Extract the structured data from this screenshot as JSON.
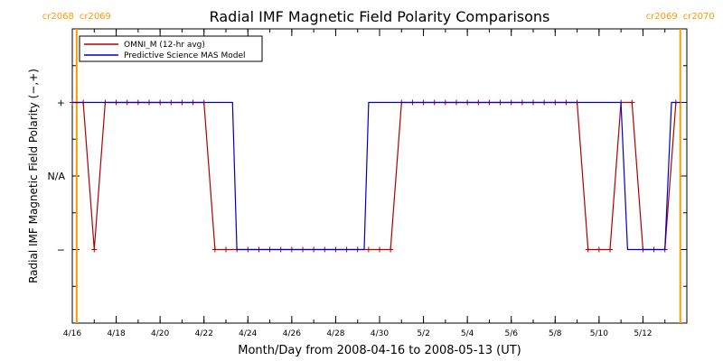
{
  "chart_data": {
    "type": "line",
    "title": "Radial IMF Magnetic Field Polarity Comparisons",
    "xlabel": "Month/Day from 2008-04-16 to 2008-05-13 (UT)",
    "ylabel": "Radial IMF Magnetic Field Polarity (−,+)",
    "xlim": [
      "2008-04-16",
      "2008-05-14"
    ],
    "x_ticks": [
      "4/16",
      "4/18",
      "4/20",
      "4/22",
      "4/24",
      "4/26",
      "4/28",
      "4/30",
      "5/2",
      "5/4",
      "5/6",
      "5/8",
      "5/10",
      "5/12"
    ],
    "y_ticks": [
      "+",
      "N/A",
      "−"
    ],
    "ylim": [
      -2,
      2
    ],
    "legend": {
      "placement": "top-left",
      "entries": [
        "OMNI_M (12-hr avg)",
        "Predictive Science MAS Model"
      ]
    },
    "carrington_markers": [
      {
        "date": "2008-04-16.2",
        "labels": [
          "cr2068",
          "cr2069"
        ],
        "color": "#ff9a00"
      },
      {
        "date": "2008-05-13.7",
        "labels": [
          "cr2069",
          "cr2070"
        ],
        "color": "#ff9a00"
      }
    ],
    "series": [
      {
        "name": "OMNI_M (12-hr avg)",
        "color": "#b00000",
        "points": [
          [
            "2008-04-16.0",
            1
          ],
          [
            "2008-04-16.5",
            1
          ],
          [
            "2008-04-17.0",
            -1
          ],
          [
            "2008-04-17.5",
            1
          ],
          [
            "2008-04-18.0",
            1
          ],
          [
            "2008-04-18.5",
            1
          ],
          [
            "2008-04-19.0",
            1
          ],
          [
            "2008-04-19.5",
            1
          ],
          [
            "2008-04-20.0",
            1
          ],
          [
            "2008-04-20.5",
            1
          ],
          [
            "2008-04-21.0",
            1
          ],
          [
            "2008-04-21.5",
            1
          ],
          [
            "2008-04-22.0",
            1
          ],
          [
            "2008-04-22.5",
            -1
          ],
          [
            "2008-04-23.0",
            -1
          ],
          [
            "2008-04-23.5",
            -1
          ],
          [
            "2008-04-24.0",
            -1
          ],
          [
            "2008-04-24.5",
            -1
          ],
          [
            "2008-04-25.0",
            -1
          ],
          [
            "2008-04-25.5",
            -1
          ],
          [
            "2008-04-26.0",
            -1
          ],
          [
            "2008-04-26.5",
            -1
          ],
          [
            "2008-04-27.0",
            -1
          ],
          [
            "2008-04-27.5",
            -1
          ],
          [
            "2008-04-28.0",
            -1
          ],
          [
            "2008-04-28.5",
            -1
          ],
          [
            "2008-04-29.0",
            -1
          ],
          [
            "2008-04-29.5",
            -1
          ],
          [
            "2008-04-30.0",
            -1
          ],
          [
            "2008-04-30.5",
            -1
          ],
          [
            "2008-05-01.0",
            1
          ],
          [
            "2008-05-01.5",
            1
          ],
          [
            "2008-05-02.0",
            1
          ],
          [
            "2008-05-02.5",
            1
          ],
          [
            "2008-05-03.0",
            1
          ],
          [
            "2008-05-03.5",
            1
          ],
          [
            "2008-05-04.0",
            1
          ],
          [
            "2008-05-04.5",
            1
          ],
          [
            "2008-05-05.0",
            1
          ],
          [
            "2008-05-05.5",
            1
          ],
          [
            "2008-05-06.0",
            1
          ],
          [
            "2008-05-06.5",
            1
          ],
          [
            "2008-05-07.0",
            1
          ],
          [
            "2008-05-07.5",
            1
          ],
          [
            "2008-05-08.0",
            1
          ],
          [
            "2008-05-08.5",
            1
          ],
          [
            "2008-05-09.0",
            1
          ],
          [
            "2008-05-09.5",
            -1
          ],
          [
            "2008-05-10.0",
            -1
          ],
          [
            "2008-05-10.5",
            -1
          ],
          [
            "2008-05-11.0",
            1
          ],
          [
            "2008-05-11.5",
            1
          ],
          [
            "2008-05-12.0",
            -1
          ],
          [
            "2008-05-12.5",
            -1
          ],
          [
            "2008-05-13.0",
            -1
          ],
          [
            "2008-05-13.5",
            1
          ]
        ]
      },
      {
        "name": "Predictive Science MAS Model",
        "color": "#0000c8",
        "points": [
          [
            "2008-04-16.0",
            1
          ],
          [
            "2008-04-23.3",
            1
          ],
          [
            "2008-04-23.5",
            -1
          ],
          [
            "2008-04-29.3",
            -1
          ],
          [
            "2008-04-29.5",
            1
          ],
          [
            "2008-05-11.0",
            1
          ],
          [
            "2008-05-11.3",
            -1
          ],
          [
            "2008-05-13.0",
            -1
          ],
          [
            "2008-05-13.3",
            1
          ],
          [
            "2008-05-13.7",
            1
          ]
        ]
      }
    ]
  }
}
